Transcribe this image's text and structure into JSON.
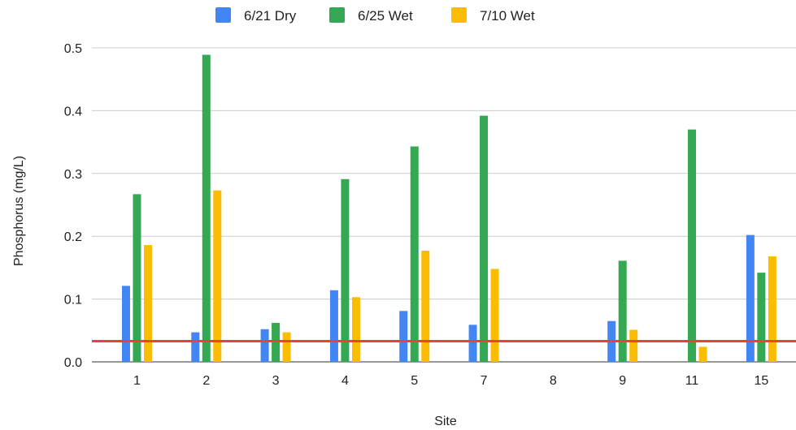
{
  "chart_data": {
    "type": "bar",
    "xlabel": "Site",
    "ylabel": "Phosphorus (mg/L)",
    "categories": [
      "1",
      "2",
      "3",
      "4",
      "5",
      "7",
      "8",
      "9",
      "11",
      "15"
    ],
    "ylim": [
      0,
      0.5
    ],
    "yticks": [
      "0.0",
      "0.1",
      "0.2",
      "0.3",
      "0.4",
      "0.5"
    ],
    "grid": true,
    "legend_position": "top",
    "series": [
      {
        "name": "6/21 Dry",
        "color": "#4285f4",
        "values": [
          0.121,
          0.047,
          0.052,
          0.114,
          0.081,
          0.059,
          null,
          0.065,
          null,
          0.202
        ]
      },
      {
        "name": "6/25 Wet",
        "color": "#34a853",
        "values": [
          0.267,
          0.489,
          0.062,
          0.291,
          0.343,
          0.392,
          null,
          0.161,
          0.37,
          0.142
        ]
      },
      {
        "name": "7/10 Wet",
        "color": "#fbbc04",
        "values": [
          0.186,
          0.273,
          0.047,
          0.103,
          0.177,
          0.148,
          null,
          0.051,
          0.024,
          0.168
        ]
      }
    ],
    "reference_line": {
      "value": 0.033,
      "color": "#ea4335"
    }
  }
}
